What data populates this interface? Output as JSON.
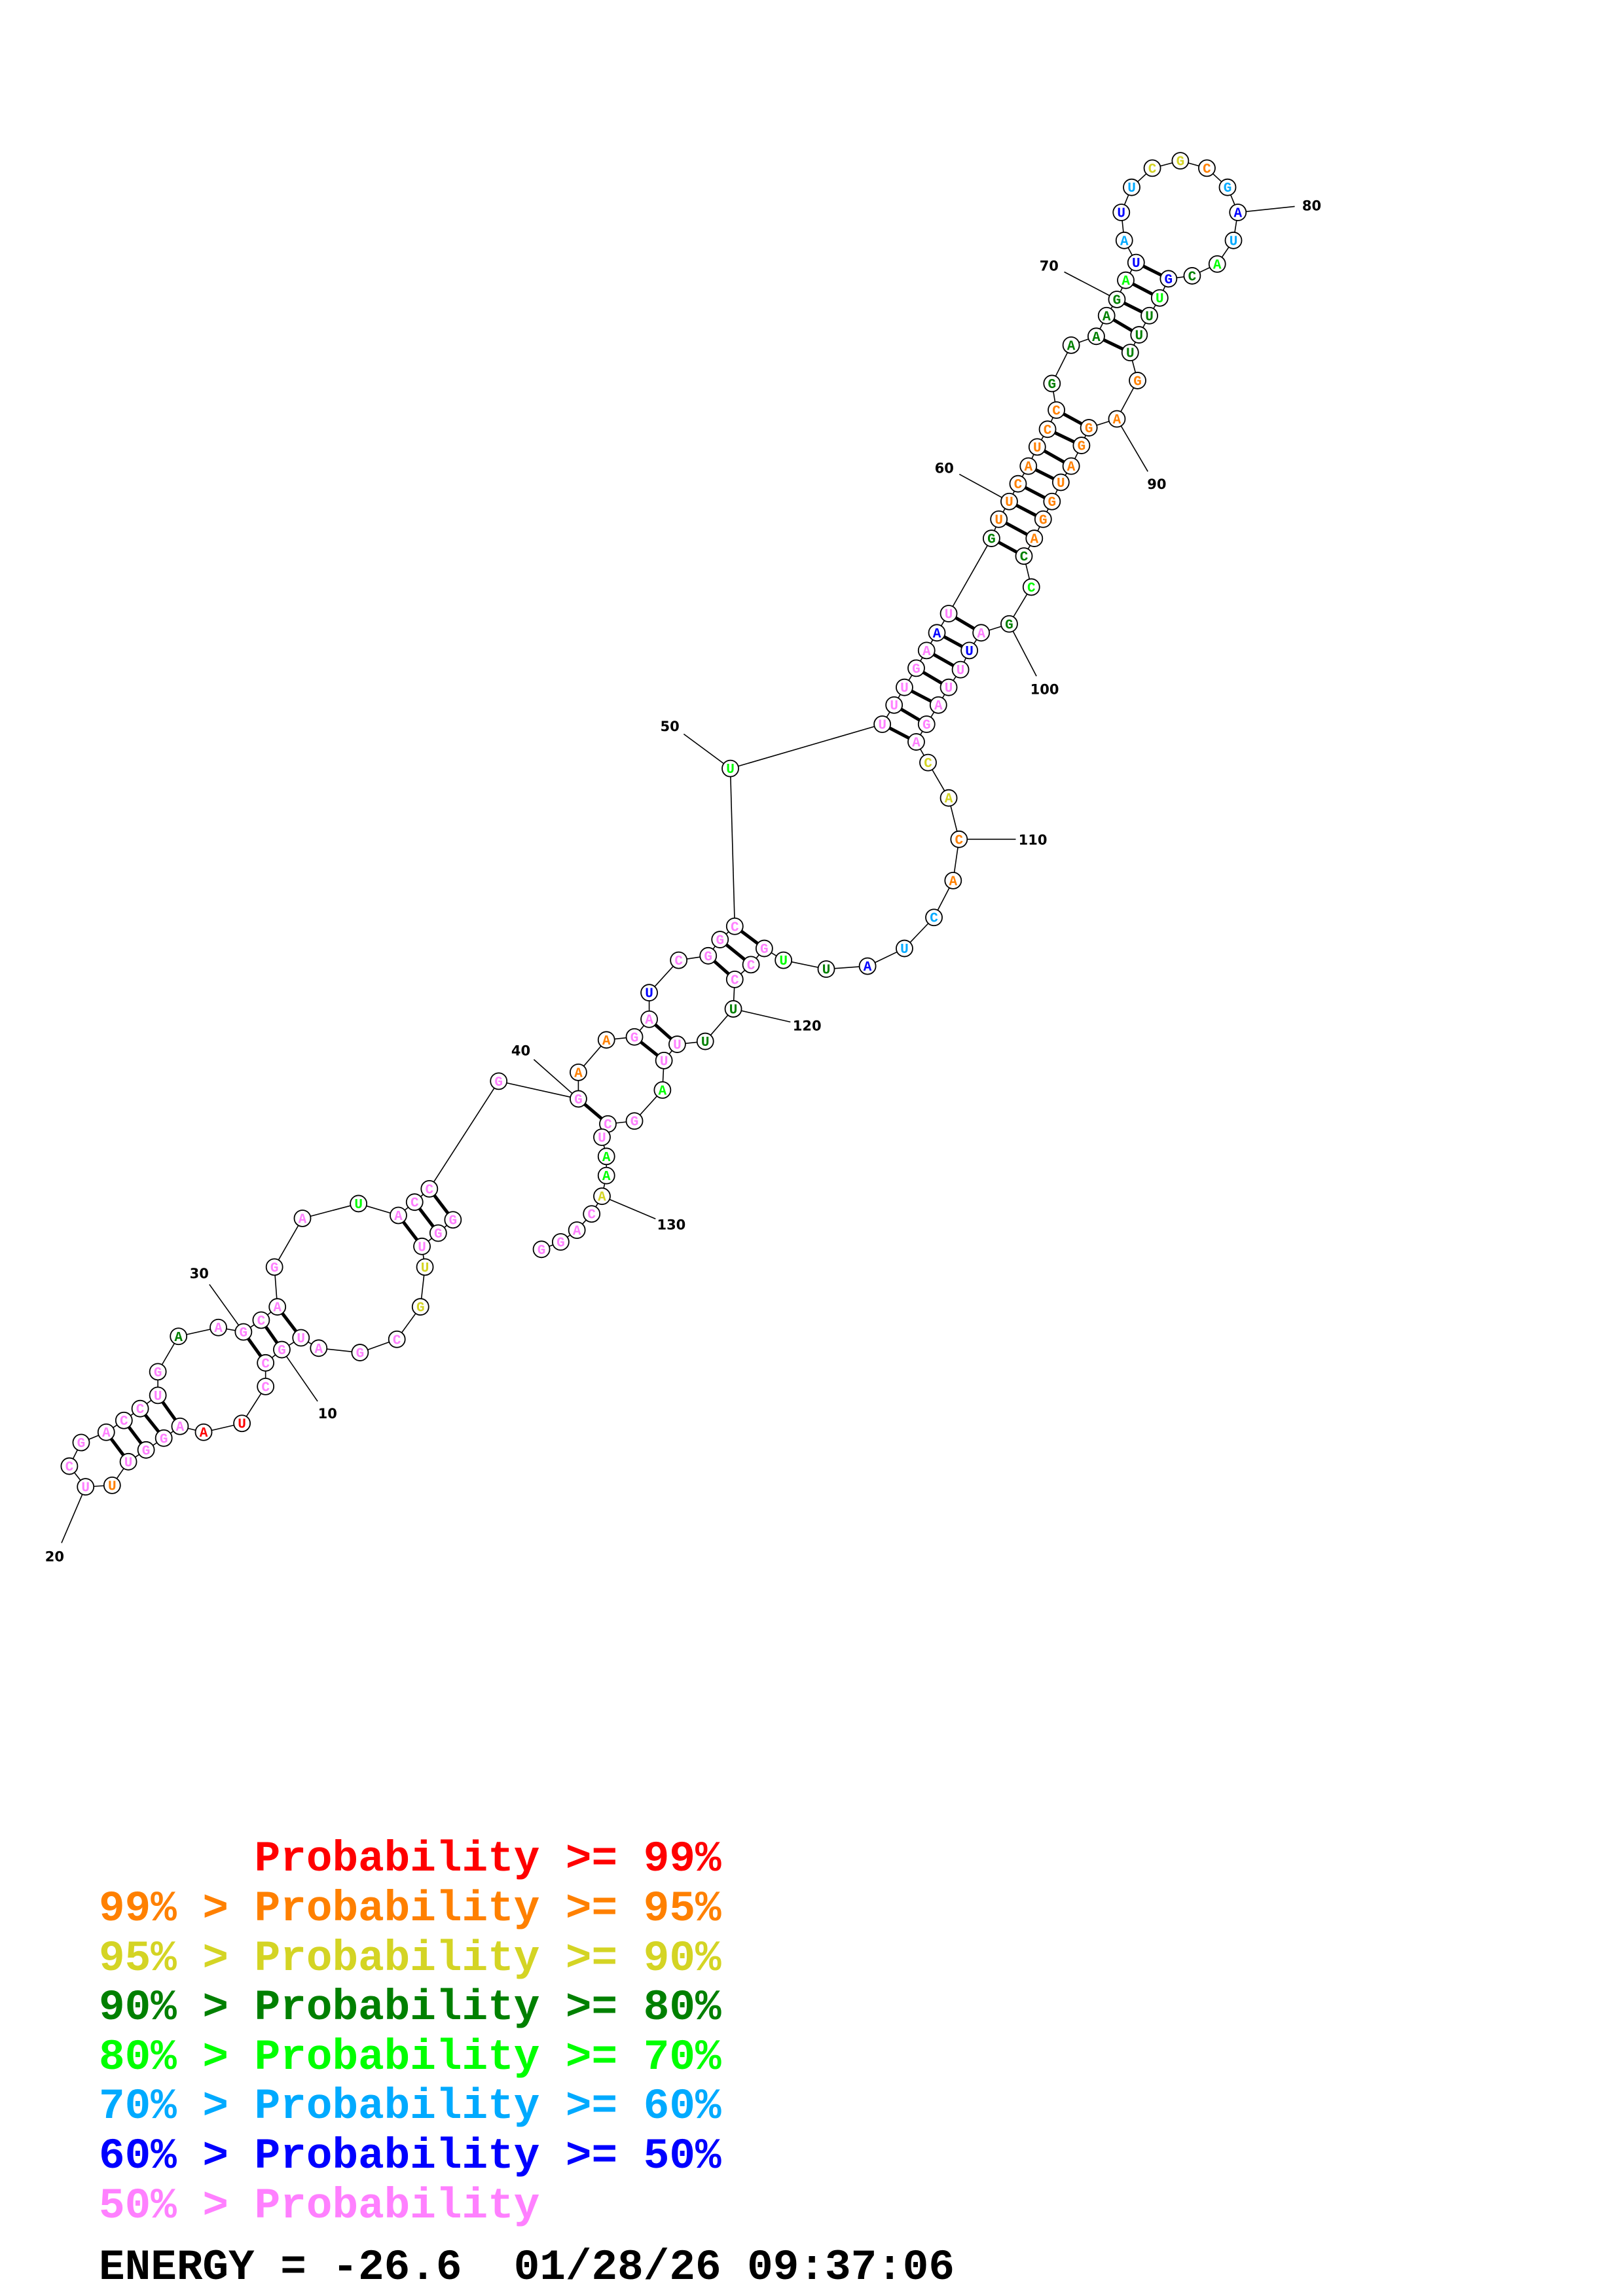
{
  "structure": {
    "sequence": "GGUUGCGAUGCCUAAGGUUUCGACCUGAAGCAGAUACCGGAAGAUCGGCUUUUGAAUGUUCAUCCGAAAGAUAUUCGCGAUACGUUUUGAGGAUGGACCGAUUUAGACACACUAUUGCCUUUUAGCUAAACAGG",
    "probability_class_per_base": "pppyypppppp",
    "classes": "pppyyppppppprrppppoppppppppdppppppgpppppooppbppppgpppppbpdoooooooddddd gbcbcyyocbcgdbgdddooooooooodgdpbpppppyyooccbdgpppddppgpppggypppp",
    "pairs": [
      [
        1,
        38
      ],
      [
        2,
        37
      ],
      [
        3,
        36
      ],
      [
        9,
        32
      ],
      [
        10,
        31
      ],
      [
        11,
        30
      ],
      [
        15,
        26
      ],
      [
        16,
        25
      ],
      [
        17,
        24
      ],
      [
        18,
        23
      ],
      [
        40,
        126
      ],
      [
        43,
        123
      ],
      [
        44,
        122
      ],
      [
        47,
        119
      ],
      [
        48,
        118
      ],
      [
        49,
        117
      ],
      [
        51,
        107
      ],
      [
        52,
        106
      ],
      [
        53,
        105
      ],
      [
        54,
        104
      ],
      [
        55,
        103
      ],
      [
        56,
        102
      ],
      [
        57,
        101
      ],
      [
        58,
        98
      ],
      [
        59,
        97
      ],
      [
        60,
        96
      ],
      [
        61,
        95
      ],
      [
        62,
        94
      ],
      [
        63,
        93
      ],
      [
        64,
        92
      ],
      [
        65,
        91
      ],
      [
        68,
        88
      ],
      [
        69,
        87
      ],
      [
        70,
        86
      ],
      [
        71,
        85
      ],
      [
        72,
        84
      ]
    ],
    "position_labels": [
      10,
      20,
      30,
      40,
      50,
      60,
      70,
      80,
      90,
      100,
      110,
      120,
      130
    ]
  },
  "colors": {
    "r": "#ff0000",
    "o": "#ff8000",
    "y": "#d4d424",
    "d": "#008000",
    "g": "#00ff00",
    "c": "#00aaff",
    "b": "#0000ff",
    "p": "#ff80ff"
  },
  "legend": {
    "items": [
      {
        "text": "      Probability >= 99%",
        "class": "r"
      },
      {
        "text": "99% > Probability >= 95%",
        "class": "o"
      },
      {
        "text": "95% > Probability >= 90%",
        "class": "y"
      },
      {
        "text": "90% > Probability >= 80%",
        "class": "d"
      },
      {
        "text": "80% > Probability >= 70%",
        "class": "g"
      },
      {
        "text": "70% > Probability >= 60%",
        "class": "c"
      },
      {
        "text": "60% > Probability >= 50%",
        "class": "b"
      },
      {
        "text": "50% > Probability",
        "class": "p"
      }
    ],
    "energy_line": "ENERGY = -26.6  01/28/26 09:37:06"
  }
}
